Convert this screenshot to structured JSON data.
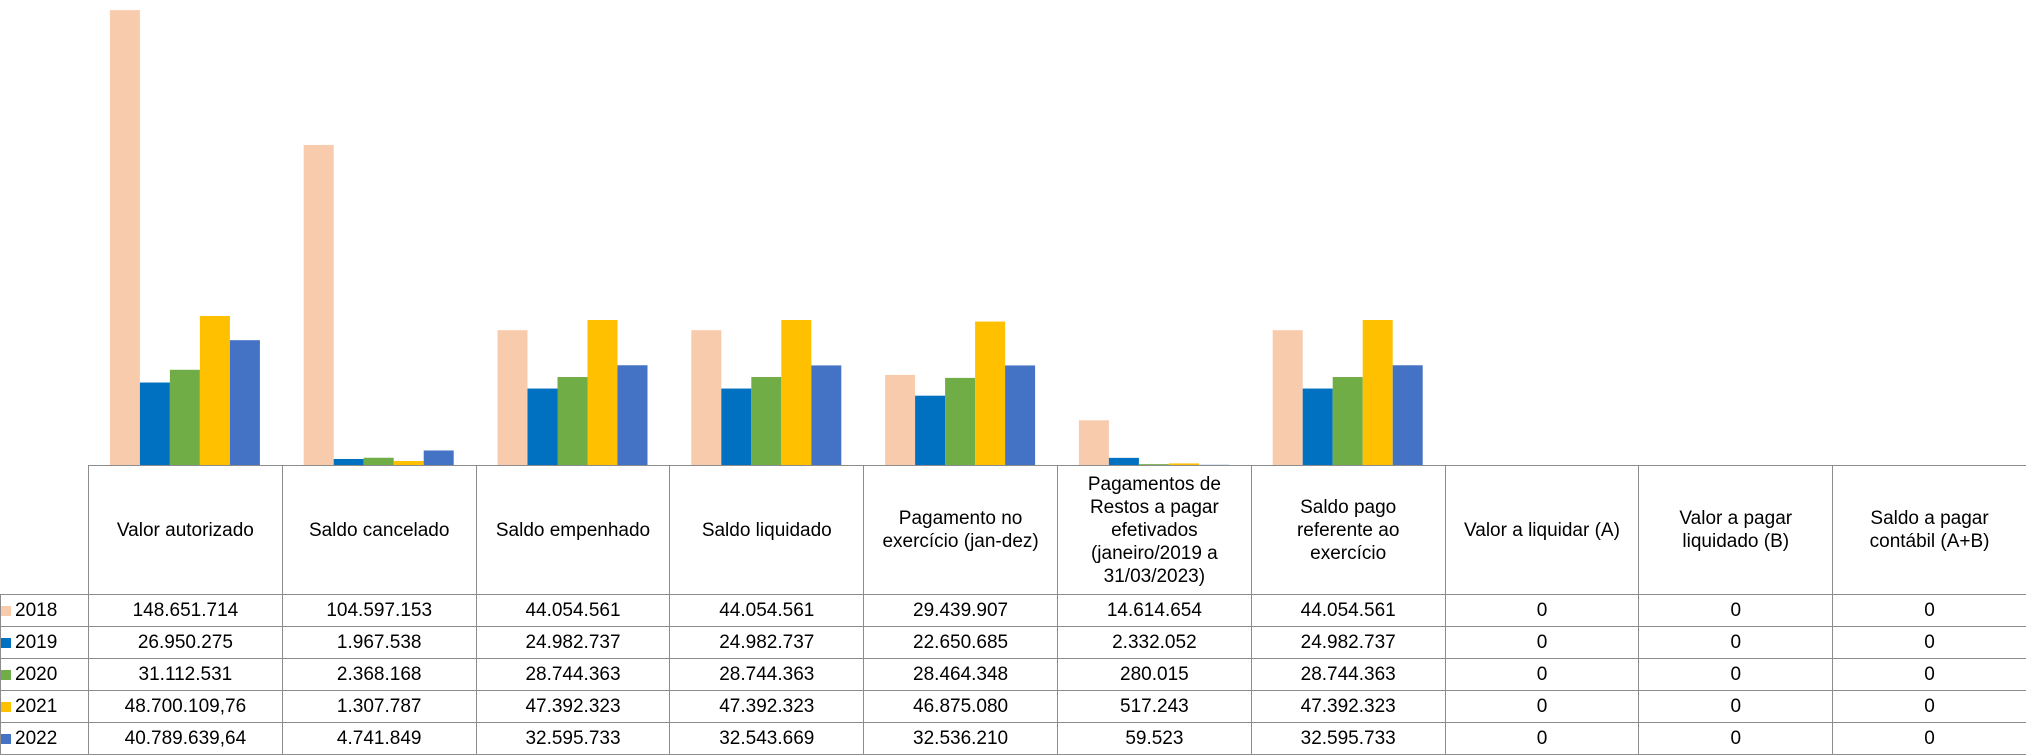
{
  "chart_data": {
    "type": "bar",
    "categories": [
      "Valor autorizado",
      "Saldo cancelado",
      "Saldo empenhado",
      "Saldo liquidado",
      "Pagamento no exercício (jan-dez)",
      "Pagamentos de Restos a pagar efetivados (janeiro/2019 a 31/03/2023)",
      "Saldo pago referente ao exercício",
      "Valor a liquidar (A)",
      "Valor a pagar liquidado (B)",
      "Saldo a pagar contábil (A+B)"
    ],
    "ylim": [
      0,
      150000000
    ],
    "series": [
      {
        "name": "2018",
        "color": "#f8cbad",
        "values": [
          148651714,
          104597153,
          44054561,
          44054561,
          29439907,
          14614654,
          44054561,
          0,
          0,
          0
        ],
        "value_labels": [
          "148.651.714",
          "104.597.153",
          "44.054.561",
          "44.054.561",
          "29.439.907",
          "14.614.654",
          "44.054.561",
          "0",
          "0",
          "0"
        ]
      },
      {
        "name": "2019",
        "color": "#0070c0",
        "values": [
          26950275,
          1967538,
          24982737,
          24982737,
          22650685,
          2332052,
          24982737,
          0,
          0,
          0
        ],
        "value_labels": [
          "26.950.275",
          "1.967.538",
          "24.982.737",
          "24.982.737",
          "22.650.685",
          "2.332.052",
          "24.982.737",
          "0",
          "0",
          "0"
        ]
      },
      {
        "name": "2020",
        "color": "#70ad47",
        "values": [
          31112531,
          2368168,
          28744363,
          28744363,
          28464348,
          280015,
          28744363,
          0,
          0,
          0
        ],
        "value_labels": [
          "31.112.531",
          "2.368.168",
          "28.744.363",
          "28.744.363",
          "28.464.348",
          "280.015",
          "28.744.363",
          "0",
          "0",
          "0"
        ]
      },
      {
        "name": "2021",
        "color": "#ffc000",
        "values": [
          48700109.76,
          1307787,
          47392323,
          47392323,
          46875080,
          517243,
          47392323,
          0,
          0,
          0
        ],
        "value_labels": [
          "48.700.109,76",
          "1.307.787",
          "47.392.323",
          "47.392.323",
          "46.875.080",
          "517.243",
          "47.392.323",
          "0",
          "0",
          "0"
        ]
      },
      {
        "name": "2022",
        "color": "#4472c4",
        "values": [
          40789639.64,
          4741849,
          32595733,
          32543669,
          32536210,
          59523,
          32595733,
          0,
          0,
          0
        ],
        "value_labels": [
          "40.789.639,64",
          "4.741.849",
          "32.595.733",
          "32.543.669",
          "32.536.210",
          "59.523",
          "32.595.733",
          "0",
          "0",
          "0"
        ]
      }
    ]
  }
}
